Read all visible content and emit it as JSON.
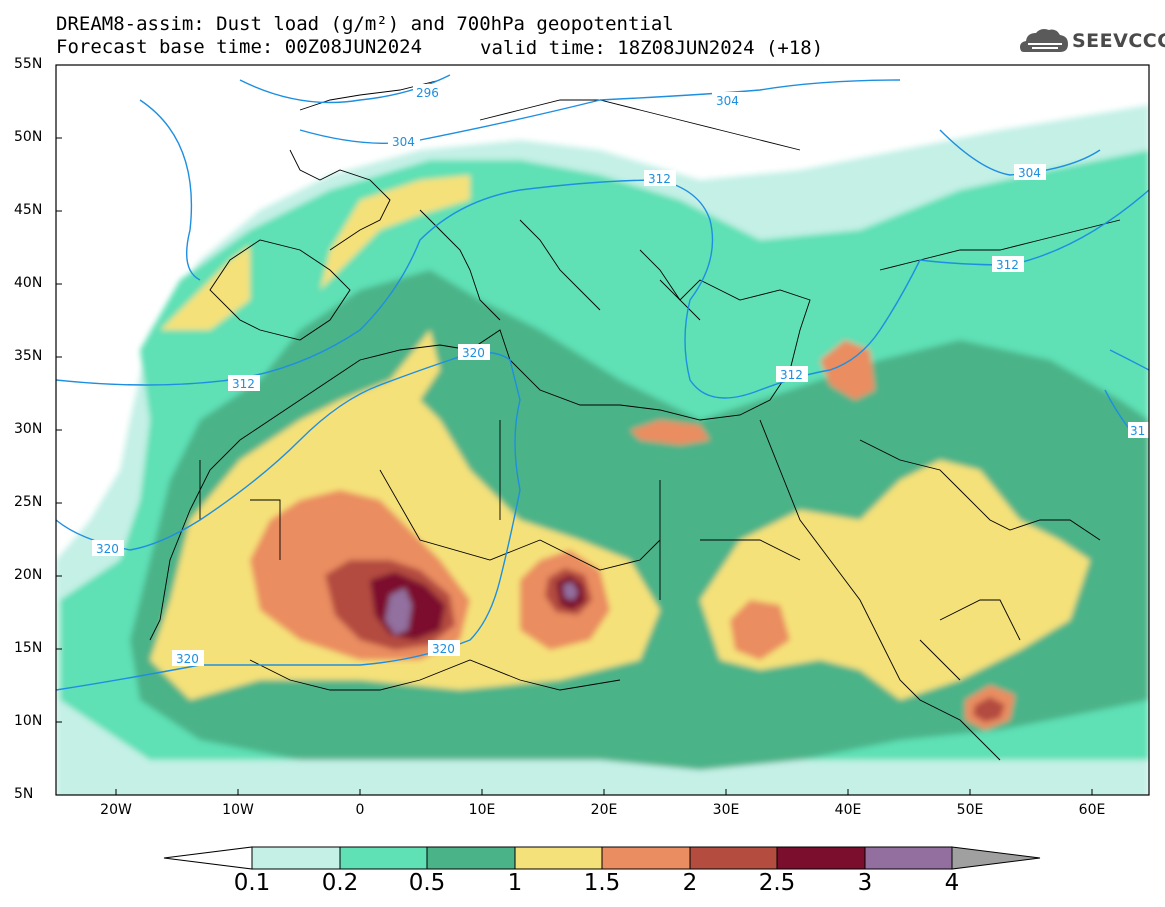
{
  "title": {
    "line1": "DREAM8-assim: Dust load (g/m²) and 700hPa geopotential",
    "line2": "Forecast base time: 00Z08JUN2024",
    "valid": "valid time: 18Z08JUN2024 (+18)"
  },
  "logo": {
    "text": "SEEVCCC",
    "icon": "cloud-icon"
  },
  "map": {
    "lat_labels": [
      "55N",
      "50N",
      "45N",
      "40N",
      "35N",
      "30N",
      "25N",
      "20N",
      "15N",
      "10N",
      "5N"
    ],
    "lon_labels": [
      "20W",
      "10W",
      "0",
      "10E",
      "20E",
      "30E",
      "40E",
      "50E",
      "60E"
    ],
    "contour_labels": [
      "296",
      "304",
      "304",
      "304",
      "312",
      "312",
      "312",
      "312",
      "31",
      "320",
      "320",
      "320",
      "320"
    ]
  },
  "colorbar": {
    "labels": [
      "0.1",
      "0.2",
      "0.5",
      "1",
      "1.5",
      "2",
      "2.5",
      "3",
      "4"
    ],
    "colors": [
      "#c4f0e6",
      "#5fe0b5",
      "#4bb388",
      "#f5e179",
      "#ea8d61",
      "#b44c40",
      "#7b0e2d",
      "#926f9f",
      "#a0a0a0"
    ]
  },
  "palette": {
    "ocean": "#ffffff",
    "contour": "#1e8fe0"
  }
}
